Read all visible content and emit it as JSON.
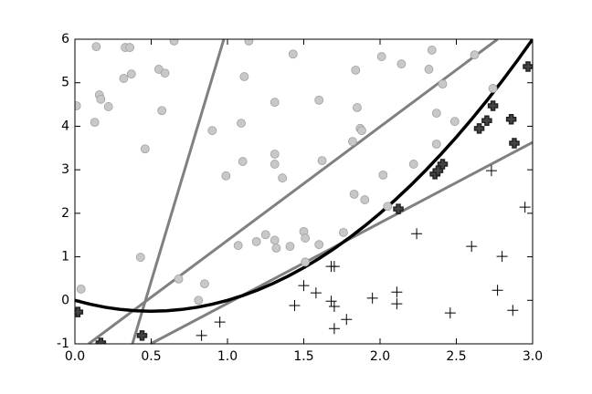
{
  "chart_data": {
    "type": "scatter",
    "xlim": [
      0,
      3
    ],
    "ylim": [
      -1,
      6
    ],
    "xticks": [
      {
        "value": 0,
        "label": "0.0"
      },
      0.5,
      {
        "value": 1,
        "label": "1.0"
      },
      1.5,
      {
        "value": 2,
        "label": "2.0"
      },
      2.5,
      {
        "value": 3,
        "label": "3.0"
      }
    ],
    "yticks": [
      -1,
      0,
      1,
      2,
      3,
      4,
      5,
      6
    ],
    "grid": false,
    "series": [
      {
        "marker": "circle",
        "color": "#c8c8c8",
        "x": [
          0.14,
          0.33,
          0.36,
          0.65,
          1.14,
          0.55,
          0.59,
          0.37,
          0.32,
          0.01,
          0.16,
          0.17,
          0.22,
          0.13,
          0.57,
          0.9,
          0.46,
          1.11,
          1.09,
          1.1,
          0.99,
          1.43,
          1.31,
          1.6,
          1.31,
          1.31,
          1.36,
          1.62,
          0.43,
          0.04,
          0.68,
          0.85,
          0.81,
          1.07,
          1.19,
          1.25,
          1.31,
          1.32,
          1.41,
          1.5,
          1.51,
          1.51,
          1.6,
          1.76,
          1.84,
          1.85,
          1.87,
          1.88,
          1.82,
          1.83,
          1.9,
          2.01,
          2.14,
          2.02,
          2.05,
          2.34,
          2.32,
          2.41,
          2.37,
          2.49,
          2.37,
          2.22,
          2.62,
          2.74
        ],
        "values": [
          5.83,
          5.81,
          5.81,
          5.96,
          5.96,
          5.31,
          5.22,
          5.2,
          5.1,
          4.47,
          4.72,
          4.62,
          4.45,
          4.09,
          4.36,
          3.9,
          3.48,
          5.14,
          4.07,
          3.19,
          2.86,
          5.66,
          4.55,
          4.6,
          3.36,
          3.13,
          2.81,
          3.21,
          0.99,
          0.26,
          0.49,
          0.38,
          0.0,
          1.26,
          1.35,
          1.51,
          1.38,
          1.2,
          1.24,
          1.58,
          1.43,
          0.88,
          1.28,
          1.56,
          5.29,
          4.43,
          3.95,
          3.9,
          3.65,
          2.44,
          2.31,
          5.6,
          5.43,
          2.88,
          2.16,
          5.75,
          5.31,
          4.97,
          4.3,
          4.11,
          3.59,
          3.13,
          5.64,
          4.87
        ]
      },
      {
        "marker": "plus",
        "color": "#000000",
        "x": [
          0.83,
          0.95,
          1.44,
          1.5,
          1.58,
          1.68,
          1.7,
          1.68,
          1.7,
          1.7,
          1.78,
          1.95,
          2.11,
          2.11,
          2.24,
          2.46,
          2.6,
          2.73,
          2.8,
          2.77,
          2.87,
          2.95
        ],
        "values": [
          -0.81,
          -0.5,
          -0.12,
          0.34,
          0.17,
          0.78,
          0.78,
          -0.02,
          -0.14,
          -0.65,
          -0.44,
          0.05,
          0.19,
          -0.08,
          1.53,
          -0.29,
          1.24,
          2.98,
          1.01,
          0.23,
          -0.23,
          2.14
        ]
      },
      {
        "marker": "filled-plus",
        "color": "#444444",
        "x": [
          0.02,
          0.17,
          0.44,
          2.12,
          2.36,
          2.38,
          2.41,
          2.65,
          2.7,
          2.74,
          2.86,
          2.88,
          2.97
        ],
        "values": [
          -0.27,
          -0.98,
          -0.81,
          2.1,
          2.9,
          2.98,
          3.13,
          3.95,
          4.13,
          4.47,
          4.16,
          3.61,
          5.37
        ]
      },
      {
        "linewidth": 3,
        "color": "#808080",
        "x": [
          0.377,
          0.976
        ],
        "values": [
          -1,
          6
        ]
      },
      {
        "linewidth": 3,
        "color": "#808080",
        "x": [
          0.09,
          2.77
        ],
        "values": [
          -1,
          6
        ]
      },
      {
        "linewidth": 3,
        "color": "#808080",
        "x": [
          0.497,
          3
        ],
        "values": [
          -1,
          3.63
        ]
      },
      {
        "linewidth": 3.5,
        "color": "#000000",
        "x": [
          0,
          0.1,
          0.2,
          0.3,
          0.4,
          0.5,
          0.6,
          0.7,
          0.8,
          0.9,
          1,
          1.1,
          1.2,
          1.3,
          1.4,
          1.5,
          1.6,
          1.7,
          1.8,
          1.9,
          2,
          2.1,
          2.2,
          2.3,
          2.4,
          2.5,
          2.6,
          2.7,
          2.8,
          2.9,
          3
        ],
        "values": [
          0,
          -0.09,
          -0.16,
          -0.21,
          -0.24,
          -0.25,
          -0.24,
          -0.21,
          -0.16,
          -0.09,
          0,
          0.11,
          0.24,
          0.39,
          0.56,
          0.75,
          0.96,
          1.19,
          1.44,
          1.71,
          2,
          2.31,
          2.64,
          2.99,
          3.36,
          3.75,
          4.16,
          4.59,
          5.04,
          5.51,
          6
        ]
      }
    ]
  }
}
